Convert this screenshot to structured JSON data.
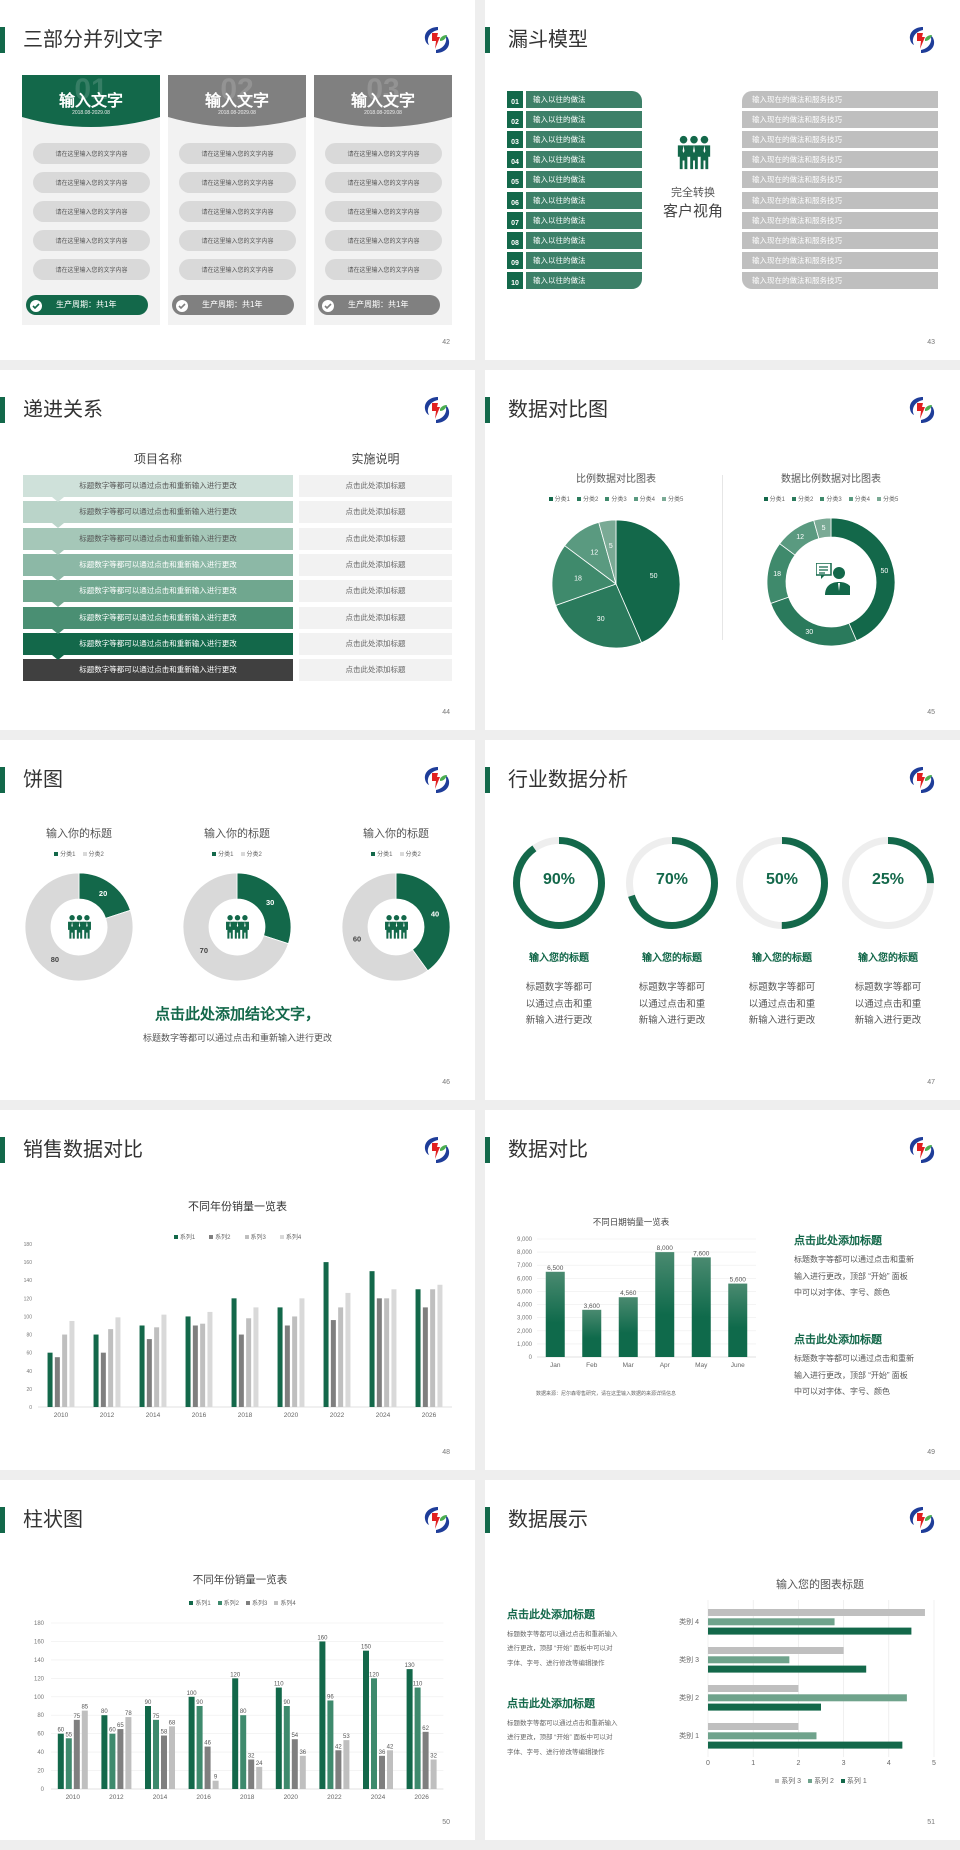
{
  "colors": {
    "green": "#13684a",
    "mid_green": "#3e8a6d",
    "gray": "#7f7f7f",
    "light_gray": "#d9d9d9",
    "background": "#eeeeee"
  },
  "slides": {
    "s42": {
      "title": "三部分并列文字",
      "page": "42",
      "cards": [
        {
          "num": "01",
          "title": "输入文字",
          "date": "2018.08-2029.08",
          "theme": "#13684a",
          "items": [
            "请在这里输入您的文字内容",
            "请在这里输入您的文字内容",
            "请在这里输入您的文字内容",
            "请在这里输入您的文字内容",
            "请在这里输入您的文字内容"
          ],
          "footer": "生产周期：共1年"
        },
        {
          "num": "02",
          "title": "输入文字",
          "date": "2018.08-2029.08",
          "theme": "#808080",
          "items": [
            "请在这里输入您的文字内容",
            "请在这里输入您的文字内容",
            "请在这里输入您的文字内容",
            "请在这里输入您的文字内容",
            "请在这里输入您的文字内容"
          ],
          "footer": "生产周期：共1年"
        },
        {
          "num": "03",
          "title": "输入文字",
          "date": "2018.08-2029.08",
          "theme": "#808080",
          "items": [
            "请在这里输入您的文字内容",
            "请在这里输入您的文字内容",
            "请在这里输入您的文字内容",
            "请在这里输入您的文字内容",
            "请在这里输入您的文字内容"
          ],
          "footer": "生产周期：共1年"
        }
      ]
    },
    "s43": {
      "title": "漏斗模型",
      "page": "43",
      "icon": "team-icon",
      "center_line1": "完全转换",
      "center_line2": "客户视角",
      "left": [
        {
          "num": "01",
          "label": "输入以往的做法"
        },
        {
          "num": "02",
          "label": "输入以往的做法"
        },
        {
          "num": "03",
          "label": "输入以往的做法"
        },
        {
          "num": "04",
          "label": "输入以往的做法"
        },
        {
          "num": "05",
          "label": "输入以往的做法"
        },
        {
          "num": "06",
          "label": "输入以往的做法"
        },
        {
          "num": "07",
          "label": "输入以往的做法"
        },
        {
          "num": "08",
          "label": "输入以往的做法"
        },
        {
          "num": "09",
          "label": "输入以往的做法"
        },
        {
          "num": "10",
          "label": "输入以往的做法"
        }
      ],
      "right": [
        "输入现在的做法和服务技巧",
        "输入现在的做法和服务技巧",
        "输入现在的做法和服务技巧",
        "输入现在的做法和服务技巧",
        "输入现在的做法和服务技巧",
        "输入现在的做法和服务技巧",
        "输入现在的做法和服务技巧",
        "输入现在的做法和服务技巧",
        "输入现在的做法和服务技巧",
        "输入现在的做法和服务技巧"
      ]
    },
    "s44": {
      "title": "递进关系",
      "page": "44",
      "header_name": "项目名称",
      "header_desc": "实施说明",
      "rows": [
        {
          "name": "标题数字等都可以通过点击和重新输入进行更改",
          "desc": "点击此处添加标题",
          "color": "#cfe1da"
        },
        {
          "name": "标题数字等都可以通过点击和重新输入进行更改",
          "desc": "点击此处添加标题",
          "color": "#bad4c9"
        },
        {
          "name": "标题数字等都可以通过点击和重新输入进行更改",
          "desc": "点击此处添加标题",
          "color": "#a5c7b8"
        },
        {
          "name": "标题数字等都可以通过点击和重新输入进行更改",
          "desc": "点击此处添加标题",
          "color": "#8cb8a6"
        },
        {
          "name": "标题数字等都可以通过点击和重新输入进行更改",
          "desc": "点击此处添加标题",
          "color": "#70a78f"
        },
        {
          "name": "标题数字等都可以通过点击和重新输入进行更改",
          "desc": "点击此处添加标题",
          "color": "#4a8f73"
        },
        {
          "name": "标题数字等都可以通过点击和重新输入进行更改",
          "desc": "点击此处添加标题",
          "color": "#13684a"
        },
        {
          "name": "标题数字等都可以通过点击和重新输入进行更改",
          "desc": "点击此处添加标题",
          "color": "#404040"
        }
      ]
    },
    "s45": {
      "title": "数据对比图",
      "page": "45",
      "donut_icon": "customer-service-icon"
    },
    "s46": {
      "title": "饼图",
      "page": "46",
      "icon": "team-icon",
      "conclusion": "点击此处添加结论文字，",
      "sub": "标题数字等都可以通过点击和重新输入进行更改"
    },
    "s47": {
      "title": "行业数据分析",
      "page": "47",
      "items": [
        {
          "value": 90,
          "label": "90%",
          "title": "输入您的标题",
          "desc": [
            "标题数字等都可",
            "以通过点击和重",
            "新输入进行更改"
          ]
        },
        {
          "value": 70,
          "label": "70%",
          "title": "输入您的标题",
          "desc": [
            "标题数字等都可",
            "以通过点击和重",
            "新输入进行更改"
          ]
        },
        {
          "value": 50,
          "label": "50%",
          "title": "输入您的标题",
          "desc": [
            "标题数字等都可",
            "以通过点击和重",
            "新输入进行更改"
          ]
        },
        {
          "value": 25,
          "label": "25%",
          "title": "输入您的标题",
          "desc": [
            "标题数字等都可",
            "以通过点击和重",
            "新输入进行更改"
          ]
        }
      ]
    },
    "s48": {
      "title": "销售数据对比",
      "page": "48"
    },
    "s49": {
      "title": "数据对比",
      "page": "49",
      "source": "数据来源：尼尔森零售研究，请在这里输入数据的来源详情信息",
      "blocks": [
        {
          "heading": "点击此处添加标题",
          "lines": [
            "标题数字等都可以通过点击和重新",
            "输入进行更改，顶部 “开始” 面板",
            "中可以对字体、字号、颜色"
          ]
        },
        {
          "heading": "点击此处添加标题",
          "lines": [
            "标题数字等都可以通过点击和重新",
            "输入进行更改，顶部 “开始” 面板",
            "中可以对字体、字号、颜色"
          ]
        }
      ]
    },
    "s50": {
      "title": "柱状图",
      "page": "50"
    },
    "s51": {
      "title": "数据展示",
      "page": "51",
      "blocks": [
        {
          "heading": "点击此处添加标题",
          "lines": [
            "标题数字等都可以通过点击和重新输入",
            "进行更改，顶部 “开始” 面板中可以对",
            "字体、字号、进行修改等编辑操作"
          ]
        },
        {
          "heading": "点击此处添加标题",
          "lines": [
            "标题数字等都可以通过点击和重新输入",
            "进行更改，顶部 “开始” 面板中可以对",
            "字体、字号、进行修改等编辑操作"
          ]
        }
      ]
    }
  },
  "chart_data": [
    {
      "type": "pie",
      "title": "比例数据对比图表",
      "legend": [
        "分类1",
        "分类2",
        "分类3",
        "分类4",
        "分类5"
      ],
      "values": [
        50,
        30,
        18,
        12,
        5
      ],
      "colors": [
        "#13684a",
        "#2a7a5c",
        "#3f8a6c",
        "#5a9a80",
        "#7aaa95"
      ],
      "legend_position": "top"
    },
    {
      "type": "pie",
      "variant": "donut",
      "title": "数据比例数据对比图表",
      "legend": [
        "分类1",
        "分类2",
        "分类3",
        "分类4",
        "分类5"
      ],
      "values": [
        50,
        30,
        18,
        12,
        5
      ],
      "colors": [
        "#13684a",
        "#2a7a5c",
        "#3f8a6c",
        "#5a9a80",
        "#7aaa95"
      ],
      "legend_position": "top"
    },
    {
      "type": "pie",
      "variant": "donut",
      "title": "输入你的标题",
      "legend": [
        "分类1",
        "分类2"
      ],
      "values": [
        20,
        80
      ],
      "colors": [
        "#13684a",
        "#d9d9d9"
      ],
      "legend_position": "top"
    },
    {
      "type": "pie",
      "variant": "donut",
      "title": "输入你的标题",
      "legend": [
        "分类1",
        "分类2"
      ],
      "values": [
        30,
        70
      ],
      "colors": [
        "#13684a",
        "#d9d9d9"
      ],
      "legend_position": "top"
    },
    {
      "type": "pie",
      "variant": "donut",
      "title": "输入你的标题",
      "legend": [
        "分类1",
        "分类2"
      ],
      "values": [
        40,
        60
      ],
      "colors": [
        "#13684a",
        "#d9d9d9"
      ],
      "legend_position": "top"
    },
    {
      "type": "bar",
      "title": "不同年份销量一览表",
      "categories": [
        "2010",
        "2012",
        "2014",
        "2016",
        "2018",
        "2020",
        "2022",
        "2024",
        "2026"
      ],
      "series": [
        {
          "name": "系列1",
          "values": [
            60,
            80,
            90,
            100,
            120,
            110,
            160,
            150,
            130
          ],
          "color": "#13684a"
        },
        {
          "name": "系列2",
          "values": [
            55,
            60,
            75,
            90,
            80,
            90,
            96,
            120,
            110
          ],
          "color": "#7f7f7f"
        },
        {
          "name": "系列3",
          "values": [
            80,
            86,
            88,
            92,
            98,
            100,
            110,
            120,
            130
          ],
          "color": "#bfbfbf"
        },
        {
          "name": "系列4",
          "values": [
            95,
            99,
            102,
            105,
            110,
            120,
            126,
            130,
            135
          ],
          "color": "#d9d9d9"
        }
      ],
      "ylim": [
        0,
        180
      ],
      "yticks": [
        0,
        20,
        40,
        60,
        80,
        100,
        120,
        140,
        160,
        180
      ],
      "legend_position": "top",
      "grid": false
    },
    {
      "type": "bar",
      "title": "不同日期销量一览表",
      "categories": [
        "Jan",
        "Feb",
        "Mar",
        "Apr",
        "May",
        "June"
      ],
      "values": [
        6500,
        3600,
        4560,
        8000,
        7600,
        5600
      ],
      "labels": [
        "6,500",
        "3,600",
        "4,560",
        "8,000",
        "7,600",
        "5,600"
      ],
      "ylim": [
        0,
        9000
      ],
      "yticks": [
        "0",
        "1,000",
        "2,000",
        "3,000",
        "4,000",
        "5,000",
        "6,000",
        "7,000",
        "8,000",
        "9,000"
      ],
      "grid": true,
      "color": "#13684a"
    },
    {
      "type": "bar",
      "title": "不同年份销量一览表",
      "categories": [
        "2010",
        "2012",
        "2014",
        "2016",
        "2018",
        "2020",
        "2022",
        "2024",
        "2026"
      ],
      "series": [
        {
          "name": "系列1",
          "values": [
            60,
            80,
            90,
            100,
            120,
            110,
            160,
            150,
            130
          ],
          "color": "#13684a"
        },
        {
          "name": "系列2",
          "values": [
            55,
            60,
            75,
            90,
            80,
            90,
            96,
            120,
            110
          ],
          "color": "#3e8a6d"
        },
        {
          "name": "系列3",
          "values": [
            75,
            65,
            58,
            46,
            32,
            54,
            42,
            36,
            62
          ],
          "color": "#7f7f7f"
        },
        {
          "name": "系列4",
          "values": [
            85,
            78,
            68,
            9,
            24,
            36,
            53,
            42,
            32
          ],
          "color": "#bfbfbf"
        }
      ],
      "ylim": [
        0,
        180
      ],
      "yticks": [
        0,
        20,
        40,
        60,
        80,
        100,
        120,
        140,
        160,
        180
      ],
      "legend_position": "top",
      "grid": true,
      "data_labels": true
    },
    {
      "type": "bar",
      "orientation": "horizontal",
      "title": "输入您的图表标题",
      "categories": [
        "类别 1",
        "类别 2",
        "类别 3",
        "类别 4"
      ],
      "series": [
        {
          "name": "系列 1",
          "values": [
            4.3,
            2.5,
            3.5,
            4.5
          ],
          "color": "#13684a"
        },
        {
          "name": "系列 2",
          "values": [
            2.4,
            4.4,
            1.8,
            2.8
          ],
          "color": "#6fa38c"
        },
        {
          "name": "系列 3",
          "values": [
            2,
            2,
            3,
            4.8
          ],
          "color": "#bfbfbf"
        }
      ],
      "xlim": [
        0,
        5
      ],
      "xticks": [
        0,
        1,
        2,
        3,
        4,
        5
      ],
      "legend": [
        "系列 3",
        "系列 2",
        "系列 1"
      ],
      "legend_position": "bottom",
      "grid": true
    }
  ]
}
